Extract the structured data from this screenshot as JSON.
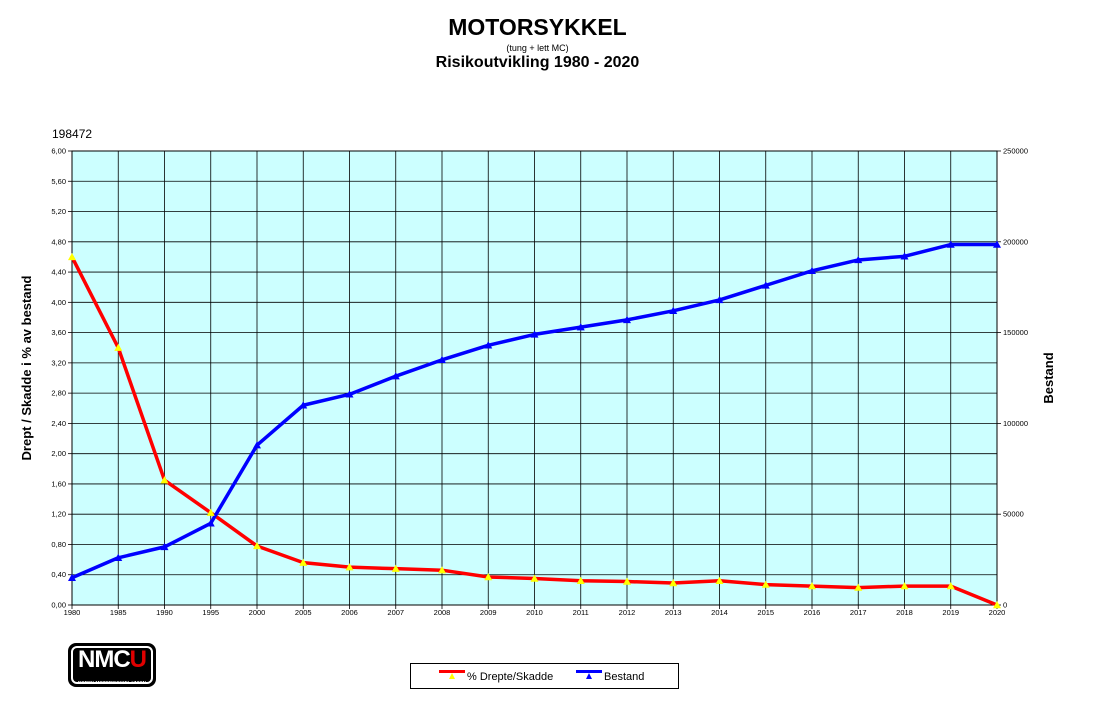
{
  "header": {
    "title": "MOTORSYKKEL",
    "subtitle": "(tung + lett MC)",
    "title2": "Risikoutvikling 1980 - 2020",
    "side_note": "198472"
  },
  "logo": {
    "text_main": "NMC",
    "text_accent": "U",
    "text_sub": "NORSK MOTORSYKKEL UNION"
  },
  "colors": {
    "plot_bg": "#ccffff",
    "series1": "#ff0000",
    "series2": "#0000ff",
    "marker1": "#ffff00",
    "marker2": "#0000ff"
  },
  "chart_data": {
    "type": "line",
    "title": "MOTORSYKKEL",
    "ylabel": "Drept / Skadde i % av bestand",
    "y2label": "Bestand",
    "categories": [
      "1980",
      "1985",
      "1990",
      "1995",
      "2000",
      "2005",
      "2006",
      "2007",
      "2008",
      "2009",
      "2010",
      "2011",
      "2012",
      "2013",
      "2014",
      "2015",
      "2016",
      "2017",
      "2018",
      "2019",
      "2020"
    ],
    "ylim": [
      0,
      6
    ],
    "y2lim": [
      0,
      250000
    ],
    "yticks": [
      "0,00",
      "0,40",
      "0,80",
      "1,20",
      "1,60",
      "2,00",
      "2,40",
      "2,80",
      "3,20",
      "3,60",
      "4,00",
      "4,40",
      "4,80",
      "5,20",
      "5,60",
      "6,00"
    ],
    "y2ticks": [
      "0",
      "50000",
      "100000",
      "150000",
      "200000",
      "250000"
    ],
    "grid": true,
    "legend_position": "bottom",
    "series": [
      {
        "name": "% Drepte/Skadde",
        "axis": "left",
        "values": [
          4.6,
          3.4,
          1.65,
          1.22,
          0.78,
          0.56,
          0.5,
          0.48,
          0.46,
          0.37,
          0.35,
          0.32,
          0.31,
          0.29,
          0.32,
          0.27,
          0.25,
          0.23,
          0.25,
          0.25,
          0.0
        ]
      },
      {
        "name": "Bestand",
        "axis": "right",
        "values": [
          15000,
          26000,
          32000,
          45000,
          88000,
          110000,
          116000,
          126000,
          135000,
          143000,
          149000,
          153000,
          157000,
          162000,
          168000,
          176000,
          184000,
          190000,
          192000,
          198500,
          198500
        ]
      }
    ]
  }
}
